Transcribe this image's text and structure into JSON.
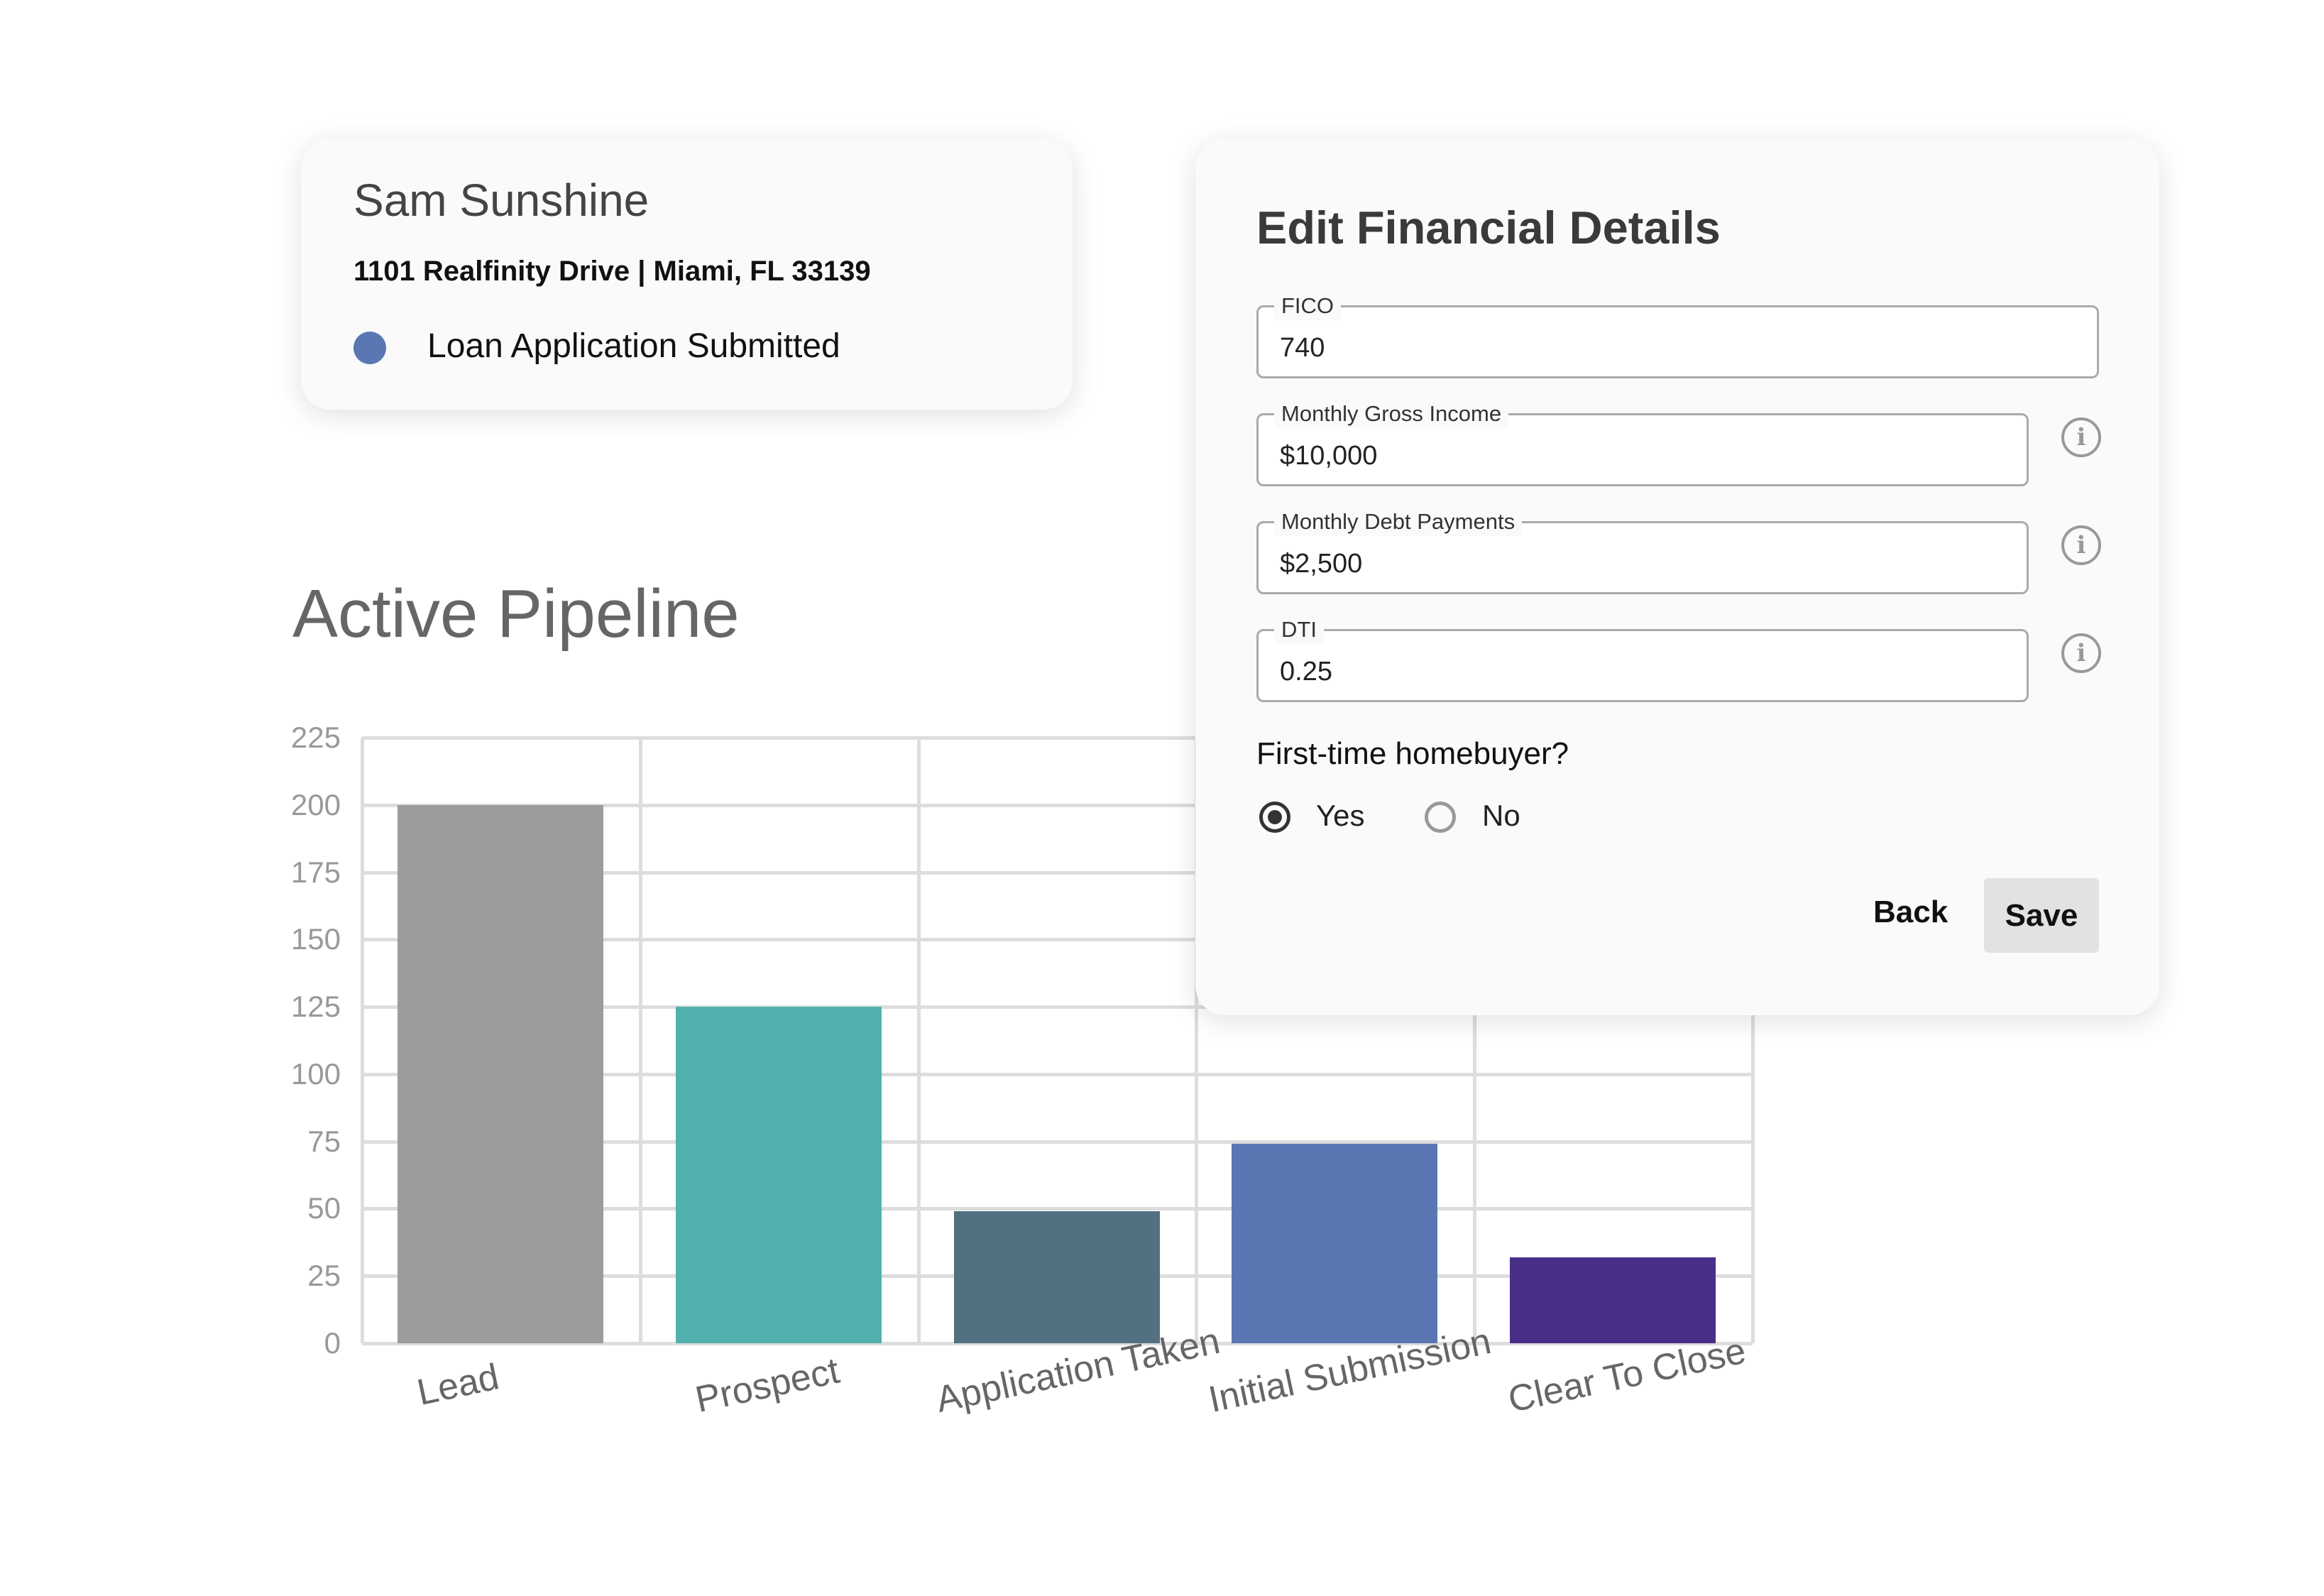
{
  "contact_card": {
    "name": "Sam Sunshine",
    "address": "1101 Realfinity Drive | Miami, FL 33139",
    "status": "Loan Application Submitted",
    "status_color": "#5a77b4"
  },
  "pipeline": {
    "title": "Active Pipeline"
  },
  "chart_data": {
    "type": "bar",
    "title": "Active Pipeline",
    "categories": [
      "Lead",
      "Prospect",
      "Application Taken",
      "Initial Submission",
      "Clear To Close"
    ],
    "values": [
      200,
      125,
      49,
      74,
      32
    ],
    "colors": [
      "#9c9c9c",
      "#52b1af",
      "#527080",
      "#5a77b4",
      "#4a2f89"
    ],
    "yticks": [
      "0",
      "25",
      "50",
      "75",
      "100",
      "125",
      "150",
      "175",
      "200",
      "225"
    ],
    "ylim": [
      0,
      225
    ],
    "grid": true,
    "xlabel": "",
    "ylabel": ""
  },
  "dialog": {
    "title": "Edit Financial Details",
    "fields": [
      {
        "label": "FICO",
        "value": "740",
        "info_icon": false
      },
      {
        "label": "Monthly Gross Income",
        "value": "$10,000",
        "info_icon": true
      },
      {
        "label": "Monthly Debt Payments",
        "value": "$2,500",
        "info_icon": true
      },
      {
        "label": "DTI",
        "value": "0.25",
        "info_icon": true
      }
    ],
    "question": "First-time homebuyer?",
    "options": [
      {
        "label": "Yes",
        "selected": true
      },
      {
        "label": "No",
        "selected": false
      }
    ],
    "back_label": "Back",
    "save_label": "Save"
  }
}
